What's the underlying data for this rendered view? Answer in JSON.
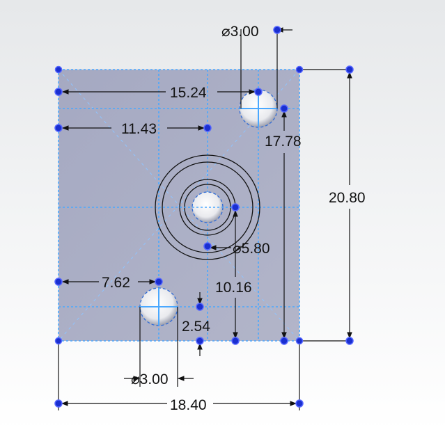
{
  "dimensions": {
    "top_hole_diameter": "3.00",
    "top_hole_x": "15.24",
    "center_hole_x": "11.43",
    "top_hole_y": "17.78",
    "height": "20.80",
    "center_hole_diameter": "5.80",
    "center_hole_y": "10.16",
    "bottom_hole_x": "7.62",
    "bottom_hole_y": "2.54",
    "bottom_hole_diameter": "3.00",
    "width": "18.40"
  },
  "symbols": {
    "diameter": "⌀"
  },
  "colors": {
    "plate_fill": "#a9adc4",
    "sketch_line": "#4aa8ff",
    "point": "#1a2fd0",
    "dimension": "#111111"
  }
}
